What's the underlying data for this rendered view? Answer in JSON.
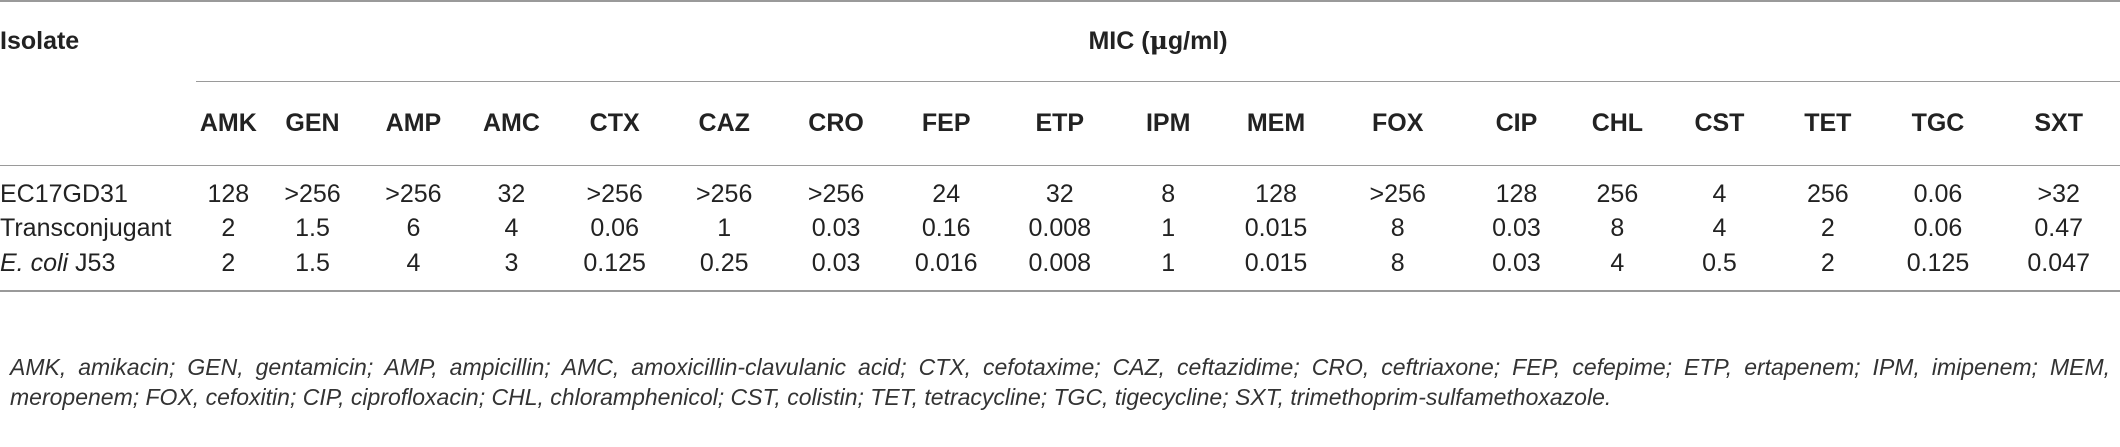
{
  "table": {
    "isolate_header": "Isolate",
    "mic_header_prefix": "MIC (",
    "mic_header_mu": "μ",
    "mic_header_suffix": "g/ml)",
    "columns": [
      "AMK",
      "GEN",
      "AMP",
      "AMC",
      "CTX",
      "CAZ",
      "CRO",
      "FEP",
      "ETP",
      "IPM",
      "MEM",
      "FOX",
      "CIP",
      "CHL",
      "CST",
      "TET",
      "TGC",
      "SXT"
    ],
    "rows": [
      {
        "name": "EC17GD31",
        "name_italic": "",
        "name_rest": "",
        "values": [
          "128",
          ">256",
          ">256",
          "32",
          ">256",
          ">256",
          ">256",
          "24",
          "32",
          "8",
          "128",
          ">256",
          "128",
          "256",
          "4",
          "256",
          "0.06",
          ">32"
        ]
      },
      {
        "name": "Transconjugant",
        "name_italic": "",
        "name_rest": "",
        "values": [
          "2",
          "1.5",
          "6",
          "4",
          "0.06",
          "1",
          "0.03",
          "0.16",
          "0.008",
          "1",
          "0.015",
          "8",
          "0.03",
          "8",
          "4",
          "2",
          "0.06",
          "0.47"
        ]
      },
      {
        "name": "",
        "name_italic": "E. coli",
        "name_rest": " J53",
        "values": [
          "2",
          "1.5",
          "4",
          "3",
          "0.125",
          "0.25",
          "0.03",
          "0.016",
          "0.008",
          "1",
          "0.015",
          "8",
          "0.03",
          "4",
          "0.5",
          "2",
          "0.125",
          "0.047"
        ]
      }
    ]
  },
  "footnote": "AMK, amikacin; GEN, gentamicin; AMP, ampicillin; AMC, amoxicillin-clavulanic acid; CTX, cefotaxime; CAZ, ceftazidime; CRO, ceftriaxone; FEP, cefepime; ETP, ertapenem; IPM, imipenem; MEM, meropenem; FOX, cefoxitin; CIP, ciprofloxacin; CHL, chloramphenicol; CST, colistin; TET, tetracycline; TGC, tigecycline; SXT, trimethoprim-sulfamethoxazole."
}
